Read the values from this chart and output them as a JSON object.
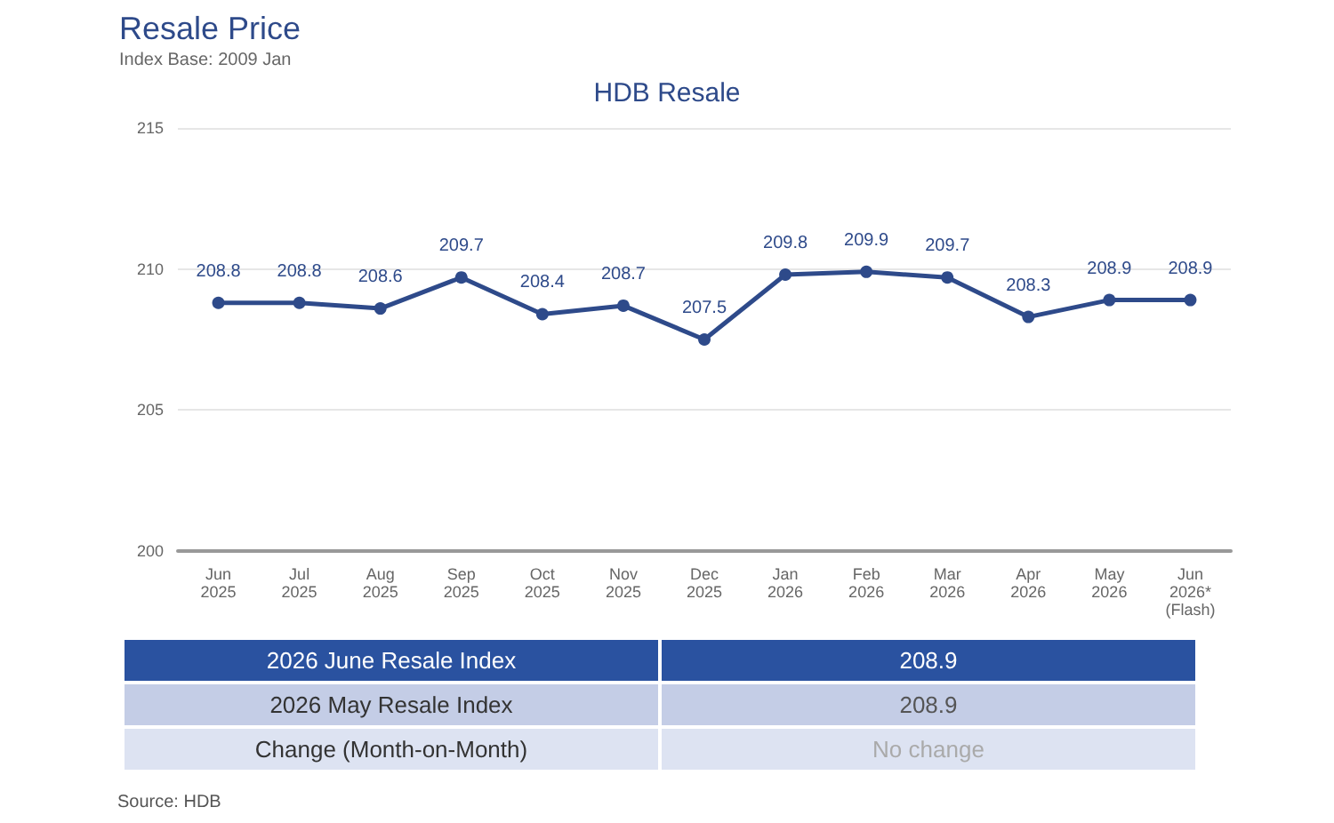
{
  "chart_data": [
    {
      "type": "line",
      "title": "Resale Price",
      "subtitle": "Index Base: 2009 Jan",
      "annotations": [
        "HDB Resale"
      ],
      "categories": [
        "Jun\n2025",
        "Jul\n2025",
        "Aug\n2025",
        "Sep\n2025",
        "Oct\n2025",
        "Nov\n2025",
        "Dec\n2025",
        "Jan\n2026",
        "Feb\n2026",
        "Mar\n2026",
        "Apr\n2026",
        "May\n2026",
        "Jun\n2026*\n(Flash)"
      ],
      "values": [
        208.8,
        208.8,
        208.6,
        209.7,
        208.4,
        208.7,
        207.5,
        209.8,
        209.9,
        209.7,
        208.3,
        208.9,
        208.9
      ],
      "color": "#2e4a8a",
      "ylim": [
        200,
        215
      ],
      "yticks": [
        200,
        205,
        210,
        215
      ],
      "grid": "y",
      "data_labels": true,
      "marker": "circle",
      "line_style": "solid"
    },
    {
      "type": "other",
      "categories": [
        "2026 June Resale Index",
        "2026 May Resale Index",
        "Change (Month-on-Month)"
      ],
      "value_labels": [
        "208.9",
        "208.9",
        "No change"
      ],
      "annotations": [
        "Source: HDB"
      ]
    }
  ]
}
